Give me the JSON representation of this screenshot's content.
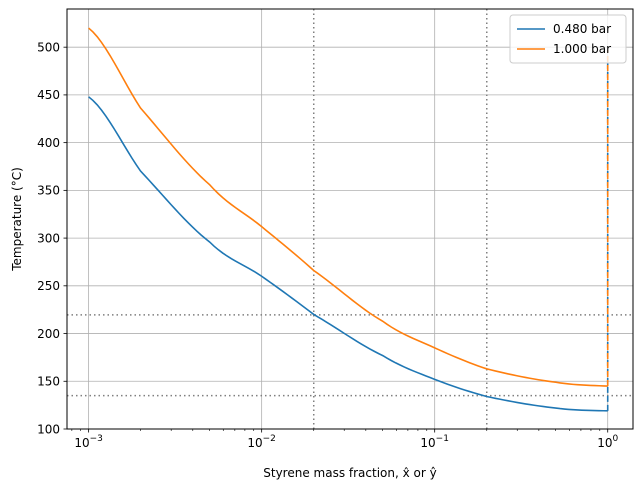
{
  "chart_data": {
    "type": "line",
    "title": "",
    "xlabel": "Styrene mass fraction, x̂ or ŷ",
    "ylabel": "Temperature (°C)",
    "xscale": "log",
    "xlim": [
      0.00075,
      1.4
    ],
    "ylim": [
      100,
      540
    ],
    "x_ticks": [
      {
        "value": 0.001,
        "base": "10",
        "exp": "−3"
      },
      {
        "value": 0.01,
        "base": "10",
        "exp": "−2"
      },
      {
        "value": 0.1,
        "base": "10",
        "exp": "−1"
      },
      {
        "value": 1,
        "base": "10",
        "exp": "0"
      }
    ],
    "y_ticks": [
      100,
      150,
      200,
      250,
      300,
      350,
      400,
      450,
      500
    ],
    "grid": true,
    "legend_position": "top-right",
    "series": [
      {
        "name": "0.480 bar",
        "color": "#1f77b4",
        "x": [
          0.001,
          0.002,
          0.005,
          0.01,
          0.02,
          0.05,
          0.1,
          0.2,
          0.5,
          1.0
        ],
        "y": [
          448,
          370,
          296,
          260,
          220,
          177,
          152,
          134,
          122,
          119
        ],
        "dashed_vertical": {
          "x": 1.0,
          "y_from": 119,
          "y_to": 490
        }
      },
      {
        "name": "1.000 bar",
        "color": "#ff7f0e",
        "x": [
          0.001,
          0.002,
          0.005,
          0.01,
          0.02,
          0.05,
          0.1,
          0.2,
          0.5,
          1.0
        ],
        "y": [
          520,
          436,
          356,
          312,
          266,
          213,
          185,
          163,
          149,
          145
        ],
        "dashed_vertical": {
          "x": 1.0,
          "y_from": 145,
          "y_to": 497
        }
      }
    ],
    "reference_lines": {
      "color": "#7f7f7f",
      "vertical_x": [
        0.02,
        0.2
      ],
      "horizontal_y": [
        219.5,
        135
      ]
    }
  }
}
